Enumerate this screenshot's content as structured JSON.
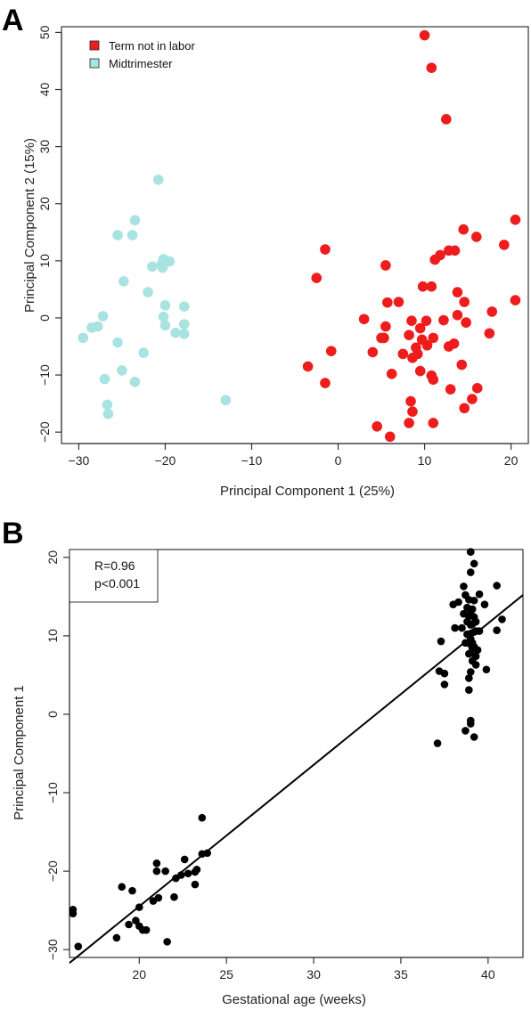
{
  "panels": {
    "a_letter": "A",
    "b_letter": "B"
  },
  "chart_data": [
    {
      "type": "scatter",
      "title": "",
      "xlabel": "Principal Component 1 (25%)",
      "ylabel": "Principal Component 2 (15%)",
      "xlim": [
        -32,
        22
      ],
      "ylim": [
        -22,
        51
      ],
      "xticks": [
        -30,
        -20,
        -10,
        0,
        10,
        20
      ],
      "yticks": [
        -20,
        -10,
        0,
        10,
        20,
        30,
        40,
        50
      ],
      "legend_position": "top-left",
      "series": [
        {
          "name": "Term not in labor",
          "color": "#ee1c1c",
          "points": [
            [
              10,
              49.5
            ],
            [
              10.8,
              43.8
            ],
            [
              12.5,
              34.8
            ],
            [
              -1.5,
              12
            ],
            [
              -2.5,
              7
            ],
            [
              5.5,
              9.2
            ],
            [
              14.5,
              15.5
            ],
            [
              16,
              14.2
            ],
            [
              20.5,
              17.2
            ],
            [
              19.2,
              12.8
            ],
            [
              11.2,
              10.2
            ],
            [
              11.8,
              11
            ],
            [
              12.8,
              11.8
            ],
            [
              13.5,
              11.8
            ],
            [
              9.8,
              5.5
            ],
            [
              10.8,
              5.5
            ],
            [
              5.7,
              2.7
            ],
            [
              7,
              2.8
            ],
            [
              13.8,
              4.5
            ],
            [
              14.6,
              2.8
            ],
            [
              20.5,
              3.1
            ],
            [
              3,
              -0.2
            ],
            [
              5.5,
              -1.5
            ],
            [
              8.5,
              -0.5
            ],
            [
              10.2,
              -0.5
            ],
            [
              12.2,
              -0.4
            ],
            [
              14.8,
              -0.8
            ],
            [
              13.8,
              0.5
            ],
            [
              17.8,
              1.1
            ],
            [
              9.5,
              -1.8
            ],
            [
              9.7,
              -3.8
            ],
            [
              10.3,
              -4.8
            ],
            [
              11,
              -3.5
            ],
            [
              8.2,
              -3
            ],
            [
              5,
              -3.5
            ],
            [
              5.3,
              -3.5
            ],
            [
              -0.8,
              -5.8
            ],
            [
              4,
              -6
            ],
            [
              7.5,
              -6.3
            ],
            [
              9,
              -5.2
            ],
            [
              9.2,
              -6.3
            ],
            [
              8.6,
              -7
            ],
            [
              12.8,
              -5
            ],
            [
              13.4,
              -4.5
            ],
            [
              17.5,
              -2.7
            ],
            [
              -3.5,
              -8.5
            ],
            [
              -1.5,
              -11.4
            ],
            [
              6.2,
              -9.8
            ],
            [
              9.5,
              -9.3
            ],
            [
              10.8,
              -10.1
            ],
            [
              11,
              -10.8
            ],
            [
              14.3,
              -8.2
            ],
            [
              13,
              -12.5
            ],
            [
              15.5,
              -14.2
            ],
            [
              16.1,
              -12.3
            ],
            [
              8.4,
              -14.6
            ],
            [
              8.6,
              -16.4
            ],
            [
              14.6,
              -15.8
            ],
            [
              8.2,
              -18.4
            ],
            [
              11,
              -18.4
            ],
            [
              4.5,
              -19
            ],
            [
              6,
              -20.8
            ]
          ]
        },
        {
          "name": "Midtrimester",
          "color": "#a8e3e1",
          "points": [
            [
              -20.8,
              24.2
            ],
            [
              -23.5,
              17.1
            ],
            [
              -25.5,
              14.5
            ],
            [
              -23.8,
              14.5
            ],
            [
              -20.2,
              10.3
            ],
            [
              -19.5,
              9.9
            ],
            [
              -21.5,
              9
            ],
            [
              -20.4,
              9.5
            ],
            [
              -20.3,
              8.8
            ],
            [
              -24.8,
              6.4
            ],
            [
              -22,
              4.5
            ],
            [
              -20,
              2.2
            ],
            [
              -17.8,
              2
            ],
            [
              -20.2,
              0.2
            ],
            [
              -29.5,
              -3.5
            ],
            [
              -28.5,
              -1.7
            ],
            [
              -27.8,
              -1.5
            ],
            [
              -27.2,
              0.3
            ],
            [
              -20,
              -1.3
            ],
            [
              -17.8,
              -1.1
            ],
            [
              -18.8,
              -2.6
            ],
            [
              -17.8,
              -2.8
            ],
            [
              -25.5,
              -4.3
            ],
            [
              -22.5,
              -6.1
            ],
            [
              -25,
              -9.2
            ],
            [
              -27,
              -10.7
            ],
            [
              -23.5,
              -11.2
            ],
            [
              -26.7,
              -15.2
            ],
            [
              -26.6,
              -16.8
            ],
            [
              -13,
              -14.4
            ]
          ]
        }
      ]
    },
    {
      "type": "scatter",
      "title": "",
      "xlabel": "Gestational age (weeks)",
      "ylabel": "Principal Component 1",
      "xlim": [
        16,
        42
      ],
      "ylim": [
        -31,
        21
      ],
      "xticks": [
        20,
        25,
        30,
        35,
        40
      ],
      "yticks": [
        -30,
        -20,
        -10,
        0,
        10,
        20
      ],
      "annotation": {
        "r": "R=0.96",
        "p": "p<0.001"
      },
      "fit_line": {
        "x": [
          16,
          42
        ],
        "y": [
          -31.7,
          15.2
        ]
      },
      "series": [
        {
          "name": "",
          "color": "#000000",
          "points": [
            [
              16.2,
              -24.9
            ],
            [
              16.2,
              -25.4
            ],
            [
              16.5,
              -29.6
            ],
            [
              18.7,
              -28.5
            ],
            [
              19,
              -22
            ],
            [
              19.4,
              -26.8
            ],
            [
              19.6,
              -22.5
            ],
            [
              19.8,
              -26.3
            ],
            [
              20,
              -27
            ],
            [
              20,
              -24.6
            ],
            [
              20.2,
              -27.5
            ],
            [
              20.4,
              -27.5
            ],
            [
              20.8,
              -23.8
            ],
            [
              21,
              -19
            ],
            [
              21,
              -20
            ],
            [
              21.1,
              -23.4
            ],
            [
              21.5,
              -20
            ],
            [
              21.6,
              -29
            ],
            [
              22,
              -23.3
            ],
            [
              22.1,
              -20.9
            ],
            [
              22.4,
              -20.5
            ],
            [
              22.6,
              -18.5
            ],
            [
              22.8,
              -20.3
            ],
            [
              23.2,
              -20.1
            ],
            [
              23.2,
              -21.7
            ],
            [
              23.3,
              -19.8
            ],
            [
              23.6,
              -13.2
            ],
            [
              23.6,
              -17.8
            ],
            [
              23.9,
              -17.7
            ],
            [
              37.1,
              -3.7
            ],
            [
              37.2,
              5.5
            ],
            [
              37.3,
              9.3
            ],
            [
              37.5,
              5.2
            ],
            [
              37.5,
              3.8
            ],
            [
              38,
              14
            ],
            [
              38.1,
              11
            ],
            [
              38.3,
              14.3
            ],
            [
              38.5,
              11
            ],
            [
              38.6,
              16.3
            ],
            [
              38.6,
              12.8
            ],
            [
              38.7,
              15.2
            ],
            [
              38.7,
              9.1
            ],
            [
              38.7,
              -2.1
            ],
            [
              38.8,
              13.6
            ],
            [
              38.8,
              11.8
            ],
            [
              38.8,
              10.2
            ],
            [
              38.9,
              7.7
            ],
            [
              38.9,
              4.6
            ],
            [
              38.9,
              3.1
            ],
            [
              38.9,
              12.5
            ],
            [
              38.9,
              14.6
            ],
            [
              39,
              20.7
            ],
            [
              39,
              20.7
            ],
            [
              39,
              18.1
            ],
            [
              39,
              12.9
            ],
            [
              39,
              11.4
            ],
            [
              39,
              10.3
            ],
            [
              39,
              9.6
            ],
            [
              39,
              8.9
            ],
            [
              39,
              7.8
            ],
            [
              39,
              5.4
            ],
            [
              39,
              -0.8
            ],
            [
              39,
              -1.2
            ],
            [
              39.1,
              13.4
            ],
            [
              39.1,
              11.5
            ],
            [
              39.1,
              9.1
            ],
            [
              39.1,
              8.3
            ],
            [
              39.1,
              6.8
            ],
            [
              39.2,
              19.2
            ],
            [
              39.2,
              14.5
            ],
            [
              39.2,
              12.4
            ],
            [
              39.2,
              10.5
            ],
            [
              39.2,
              8.6
            ],
            [
              39.2,
              -2.9
            ],
            [
              39.3,
              11.8
            ],
            [
              39.3,
              10.6
            ],
            [
              39.3,
              7.4
            ],
            [
              39.3,
              6.3
            ],
            [
              39.4,
              8.2
            ],
            [
              39.5,
              15.3
            ],
            [
              39.5,
              10.6
            ],
            [
              39.8,
              14
            ],
            [
              39.9,
              5.7
            ],
            [
              40.5,
              16.4
            ],
            [
              40.5,
              10.7
            ],
            [
              40.8,
              12.1
            ]
          ]
        }
      ]
    }
  ]
}
